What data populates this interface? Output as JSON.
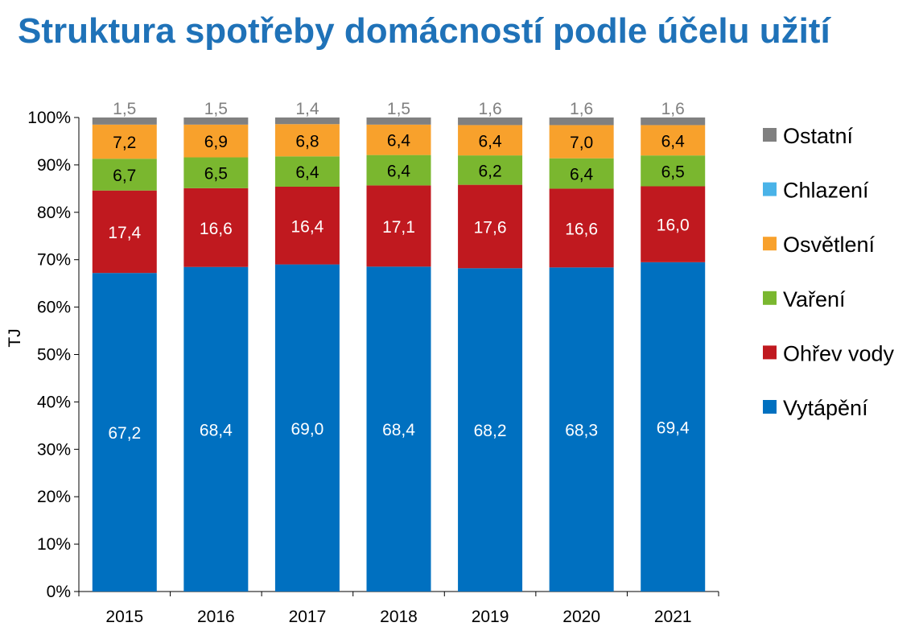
{
  "title": "Struktura spotřeby domácností podle účelu užití",
  "chart_data": {
    "type": "bar",
    "stacked": true,
    "normalized": true,
    "title": "Struktura spotřeby domácností podle účelu užití",
    "ylabel": "TJ",
    "xlabel": "",
    "ylim": [
      0,
      100
    ],
    "yticks": [
      "0%",
      "10%",
      "20%",
      "30%",
      "40%",
      "50%",
      "60%",
      "70%",
      "80%",
      "90%",
      "100%"
    ],
    "categories": [
      "2015",
      "2016",
      "2017",
      "2018",
      "2019",
      "2020",
      "2021"
    ],
    "series": [
      {
        "name": "Vytápění",
        "color": "#0070c0",
        "label_color": "#ffffff",
        "values": [
          67.2,
          68.4,
          69.0,
          68.4,
          68.2,
          68.3,
          69.4
        ],
        "labels": [
          "67,2",
          "68,4",
          "69,0",
          "68,4",
          "68,2",
          "68,3",
          "69,4"
        ]
      },
      {
        "name": "Ohřev vody",
        "color": "#c0191f",
        "label_color": "#ffffff",
        "values": [
          17.4,
          16.6,
          16.4,
          17.1,
          17.6,
          16.6,
          16.0
        ],
        "labels": [
          "17,4",
          "16,6",
          "16,4",
          "17,1",
          "17,6",
          "16,6",
          "16,0"
        ]
      },
      {
        "name": "Vaření",
        "color": "#7ab72f",
        "label_color": "#000000",
        "values": [
          6.7,
          6.5,
          6.4,
          6.4,
          6.2,
          6.4,
          6.5
        ],
        "labels": [
          "6,7",
          "6,5",
          "6,4",
          "6,4",
          "6,2",
          "6,4",
          "6,5"
        ]
      },
      {
        "name": "Chlazení",
        "color": "#4ab3e8",
        "label_color": "#000000",
        "values": [
          0,
          0,
          0,
          0,
          0,
          0,
          0
        ],
        "labels": []
      },
      {
        "name": "Osvětlení",
        "color": "#f8a12c",
        "label_color": "#000000",
        "values": [
          7.2,
          6.9,
          6.8,
          6.4,
          6.4,
          7.0,
          6.4
        ],
        "labels": [
          "7,2",
          "6,9",
          "6,8",
          "6,4",
          "6,4",
          "7,0",
          "6,4"
        ]
      },
      {
        "name": "Ostatní",
        "color": "#808080",
        "label_color": "#808080",
        "values": [
          1.5,
          1.5,
          1.4,
          1.5,
          1.6,
          1.6,
          1.6
        ],
        "labels": [
          "1,5",
          "1,5",
          "1,4",
          "1,5",
          "1,6",
          "1,6",
          "1,6"
        ]
      }
    ],
    "legend": {
      "position": "right",
      "order": [
        "Ostatní",
        "Chlazení",
        "Osvětlení",
        "Vaření",
        "Ohřev vody",
        "Vytápění"
      ]
    },
    "grid": false
  }
}
